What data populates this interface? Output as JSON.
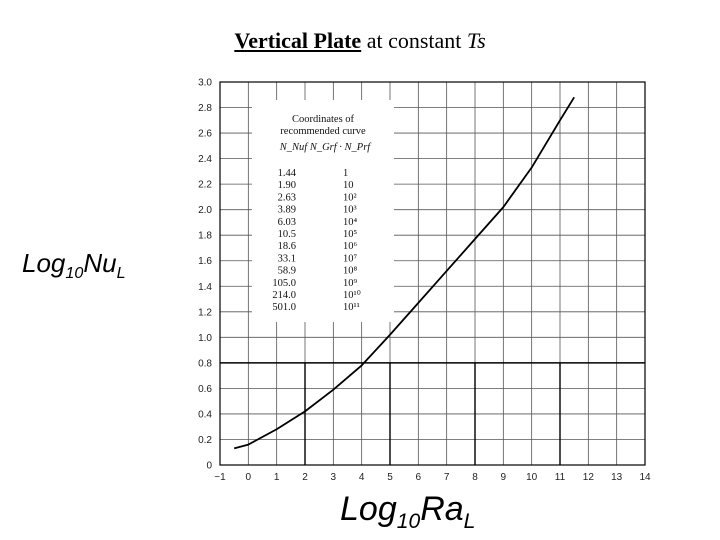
{
  "page": {
    "title_part1": "Vertical Plate",
    "title_part2": " at constant ",
    "title_part3": "Ts"
  },
  "labels": {
    "y_main": "Log",
    "y_sub": "10",
    "y_var": "Nu",
    "y_var_sub": "L",
    "x_main": "Log",
    "x_sub": "10",
    "x_var": "Ra",
    "x_var_sub": "L"
  },
  "table": {
    "header_line1": "Coordinates of",
    "header_line2": "recommended curve",
    "header_line3": "N_Nuf    N_Grf  ·  N_Prf",
    "col1": [
      "1.44",
      "1.90",
      "2.63",
      "3.89",
      "6.03",
      "10.5",
      "18.6",
      "33.1",
      "58.9",
      "105.0",
      "214.0",
      "501.0"
    ],
    "col2": [
      "1",
      "10",
      "10²",
      "10³",
      "10⁴",
      "10⁵",
      "10⁶",
      "10⁷",
      "10⁸",
      "10⁹",
      "10¹⁰",
      "10¹¹"
    ]
  },
  "chart_data": {
    "type": "line",
    "xlim": [
      -1,
      14
    ],
    "ylim": [
      0,
      3.0
    ],
    "x_ticks": [
      -1,
      0,
      1,
      2,
      3,
      4,
      5,
      6,
      7,
      8,
      9,
      10,
      11,
      12,
      13,
      14
    ],
    "y_ticks": [
      0,
      0.2,
      0.4,
      0.6,
      0.8,
      1.0,
      1.2,
      1.4,
      1.6,
      1.8,
      2.0,
      2.2,
      2.4,
      2.6,
      2.8,
      3.0
    ],
    "y_tick_labels": [
      "0",
      "0.2",
      "0.4",
      "0.6",
      "0.8",
      "1.0",
      "1.2",
      "1.4",
      "1.6",
      "1.8",
      "2.0",
      "2.2",
      "2.4",
      "2.6",
      "2.8",
      "3.0"
    ],
    "grid": true,
    "series": [
      {
        "x": [
          -0.5,
          0,
          1,
          2,
          3,
          4,
          5,
          6,
          7,
          8,
          9,
          10,
          11,
          11.5
        ],
        "y": [
          0.13,
          0.16,
          0.28,
          0.42,
          0.59,
          0.78,
          1.02,
          1.27,
          1.52,
          1.77,
          2.02,
          2.33,
          2.7,
          2.88
        ]
      }
    ],
    "emphasized_lines": {
      "y": 0.8,
      "x": [
        2,
        5,
        8,
        11
      ]
    }
  }
}
